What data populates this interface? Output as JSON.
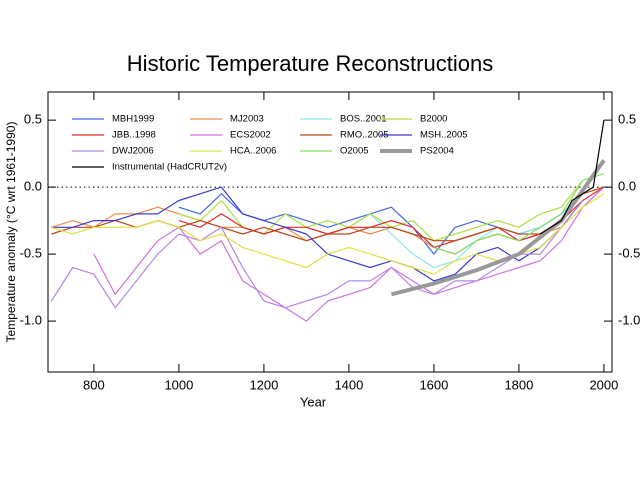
{
  "chart_data": {
    "type": "line",
    "title": "Historic Temperature Reconstructions",
    "x_label": "Year",
    "y_label": "Temperature anomaly (°C wrt 1961-1990)",
    "xlim": [
      692,
      2019
    ],
    "ylim": [
      -1.38,
      0.71
    ],
    "xticks": [
      800,
      1000,
      1200,
      1400,
      1600,
      1800,
      2000
    ],
    "yticks": [
      {
        "value": -1,
        "label": "-1.0"
      },
      -0.5,
      {
        "value": 0,
        "label": "0.0"
      },
      0.5
    ],
    "reference_line": 0,
    "x": [
      700,
      750,
      800,
      850,
      900,
      950,
      1000,
      1050,
      1100,
      1150,
      1200,
      1250,
      1300,
      1350,
      1400,
      1450,
      1500,
      1550,
      1600,
      1650,
      1700,
      1750,
      1800,
      1850,
      1900,
      1950,
      2000
    ],
    "series": [
      {
        "name": "MBH1999",
        "color": "#4466e6",
        "values": [
          null,
          null,
          null,
          null,
          null,
          null,
          -0.15,
          -0.2,
          -0.05,
          -0.2,
          -0.25,
          -0.2,
          -0.25,
          -0.3,
          -0.25,
          -0.2,
          -0.15,
          -0.3,
          -0.5,
          -0.3,
          -0.25,
          -0.3,
          -0.35,
          -0.3,
          -0.2,
          -0.05,
          null
        ]
      },
      {
        "name": "MJ2003",
        "color": "#f08a4a",
        "values": [
          -0.3,
          -0.25,
          -0.3,
          -0.2,
          -0.2,
          -0.15,
          -0.2,
          -0.25,
          -0.3,
          -0.3,
          -0.35,
          -0.3,
          -0.4,
          -0.35,
          -0.3,
          -0.35,
          -0.3,
          -0.35,
          -0.45,
          -0.5,
          -0.4,
          -0.35,
          -0.4,
          -0.35,
          -0.3,
          -0.1,
          null
        ]
      },
      {
        "name": "BOS..2001",
        "color": "#88e8f0",
        "values": [
          null,
          null,
          null,
          null,
          null,
          null,
          null,
          null,
          null,
          null,
          null,
          null,
          null,
          null,
          -0.3,
          -0.2,
          -0.35,
          -0.5,
          -0.6,
          -0.55,
          -0.4,
          -0.3,
          -0.35,
          -0.3,
          -0.2,
          -0.05,
          null
        ]
      },
      {
        "name": "B2000",
        "color": "#a8e040",
        "values": [
          null,
          null,
          null,
          null,
          null,
          null,
          -0.2,
          -0.25,
          -0.1,
          -0.3,
          -0.35,
          -0.2,
          -0.3,
          -0.25,
          -0.3,
          -0.2,
          -0.3,
          -0.25,
          -0.4,
          -0.35,
          -0.3,
          -0.25,
          -0.3,
          -0.2,
          -0.15,
          0.05,
          null
        ]
      },
      {
        "name": "JBB..1998",
        "color": "#e02828",
        "values": [
          null,
          null,
          null,
          null,
          null,
          null,
          -0.25,
          -0.3,
          -0.2,
          -0.3,
          -0.35,
          -0.3,
          -0.3,
          -0.35,
          -0.3,
          -0.3,
          -0.25,
          -0.3,
          -0.45,
          -0.4,
          -0.35,
          -0.3,
          -0.4,
          -0.35,
          -0.25,
          -0.1,
          0.0
        ]
      },
      {
        "name": "ECS2002",
        "color": "#d070e0",
        "values": [
          null,
          null,
          -0.5,
          -0.8,
          -0.6,
          -0.4,
          -0.3,
          -0.5,
          -0.4,
          -0.7,
          -0.8,
          -0.9,
          -1.0,
          -0.85,
          -0.8,
          -0.75,
          -0.6,
          -0.7,
          -0.8,
          -0.75,
          -0.7,
          -0.65,
          -0.6,
          -0.55,
          -0.4,
          -0.15,
          0.0
        ]
      },
      {
        "name": "RMO..2005",
        "color": "#b84818",
        "values": [
          -0.35,
          -0.3,
          -0.3,
          -0.25,
          -0.3,
          -0.25,
          -0.3,
          -0.25,
          -0.3,
          -0.35,
          -0.3,
          -0.35,
          -0.4,
          -0.35,
          -0.35,
          -0.3,
          -0.3,
          -0.35,
          -0.4,
          -0.4,
          -0.35,
          -0.3,
          -0.35,
          -0.35,
          -0.25,
          -0.05,
          0.0
        ]
      },
      {
        "name": "MSH..2005",
        "color": "#3a3ad0",
        "values": [
          -0.3,
          -0.3,
          -0.25,
          -0.25,
          -0.2,
          -0.2,
          -0.1,
          -0.05,
          0.0,
          -0.2,
          -0.25,
          -0.3,
          -0.35,
          -0.5,
          -0.55,
          -0.6,
          -0.55,
          -0.6,
          -0.7,
          -0.65,
          -0.5,
          -0.45,
          -0.55,
          -0.45,
          -0.3,
          -0.1,
          null
        ]
      },
      {
        "name": "DWJ2006",
        "color": "#b488e4",
        "values": [
          -0.85,
          -0.6,
          -0.65,
          -0.9,
          -0.7,
          -0.5,
          -0.35,
          -0.4,
          -0.3,
          -0.6,
          -0.85,
          -0.9,
          -0.85,
          -0.8,
          -0.7,
          -0.7,
          -0.6,
          -0.75,
          -0.8,
          -0.7,
          -0.7,
          -0.6,
          -0.5,
          -0.5,
          -0.3,
          -0.1,
          null
        ]
      },
      {
        "name": "HCA..2006",
        "color": "#e0e040",
        "values": [
          -0.3,
          -0.35,
          -0.3,
          -0.3,
          -0.3,
          -0.25,
          -0.3,
          -0.4,
          -0.35,
          -0.45,
          -0.5,
          -0.55,
          -0.6,
          -0.5,
          -0.45,
          -0.5,
          -0.55,
          -0.6,
          -0.65,
          -0.55,
          -0.5,
          -0.55,
          -0.5,
          -0.45,
          -0.3,
          -0.15,
          -0.05
        ]
      },
      {
        "name": "O2005",
        "color": "#80e060",
        "values": [
          null,
          null,
          null,
          null,
          null,
          null,
          null,
          null,
          null,
          null,
          null,
          null,
          null,
          null,
          null,
          null,
          null,
          null,
          -0.45,
          -0.5,
          -0.4,
          -0.35,
          -0.4,
          -0.3,
          -0.2,
          0.05,
          0.1
        ]
      },
      {
        "name": "PS2004",
        "color": "#999999",
        "width": 4,
        "x": [
          1500,
          1600,
          1700,
          1800,
          1900,
          2000
        ],
        "values": [
          -0.8,
          -0.72,
          -0.62,
          -0.5,
          -0.25,
          0.2
        ]
      },
      {
        "name": "Instrumental (HadCRUT2v)",
        "color": "#000000",
        "x": [
          1850,
          1875,
          1900,
          1925,
          1950,
          1975,
          2000
        ],
        "values": [
          -0.35,
          -0.3,
          -0.25,
          -0.1,
          -0.05,
          0.0,
          0.5
        ]
      }
    ]
  }
}
